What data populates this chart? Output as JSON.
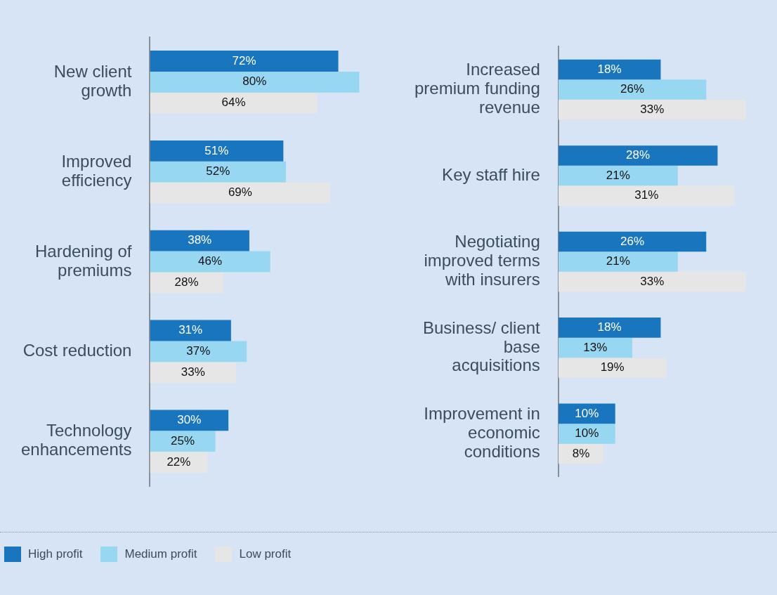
{
  "chart_data": [
    {
      "type": "bar",
      "orientation": "horizontal",
      "categories": [
        "New client growth",
        "Improved efficiency",
        "Hardening of premiums",
        "Cost reduction",
        "Technology enhancements"
      ],
      "series": [
        {
          "name": "High profit",
          "color": "#1a75bf",
          "values": [
            72,
            51,
            38,
            31,
            30
          ],
          "value_labels": [
            "72%",
            "51%",
            "38%",
            "31%",
            "30%"
          ]
        },
        {
          "name": "Medium profit",
          "color": "#97d7f2",
          "values": [
            80,
            52,
            46,
            37,
            25
          ],
          "value_labels": [
            "80%",
            "52%",
            "46%",
            "37%",
            "25%"
          ]
        },
        {
          "name": "Low profit",
          "color": "#e6e6e6",
          "values": [
            64,
            69,
            28,
            33,
            22
          ],
          "value_labels": [
            "64%",
            "69%",
            "28%",
            "33%",
            "22%"
          ]
        }
      ],
      "tick_labels": "y",
      "legend": "bottom"
    },
    {
      "type": "bar",
      "orientation": "horizontal",
      "categories": [
        "Increased premium funding revenue",
        "Key staff hire",
        "Negotiating improved terms with insurers",
        "Business/ client base acquisitions",
        "Improvement in economic conditions"
      ],
      "series": [
        {
          "color": "#1a75bf",
          "values": [
            18,
            28,
            26,
            18,
            10
          ],
          "value_labels": [
            "18%",
            "28%",
            "26%",
            "18%",
            "10%"
          ]
        },
        {
          "color": "#97d7f2",
          "values": [
            26,
            21,
            21,
            13,
            10
          ],
          "value_labels": [
            "26%",
            "21%",
            "21%",
            "13%",
            "10%"
          ]
        },
        {
          "color": "#e6e6e6",
          "values": [
            33,
            31,
            33,
            19,
            8
          ],
          "value_labels": [
            "33%",
            "31%",
            "33%",
            "19%",
            "8%"
          ]
        }
      ],
      "tick_labels": "y"
    }
  ]
}
